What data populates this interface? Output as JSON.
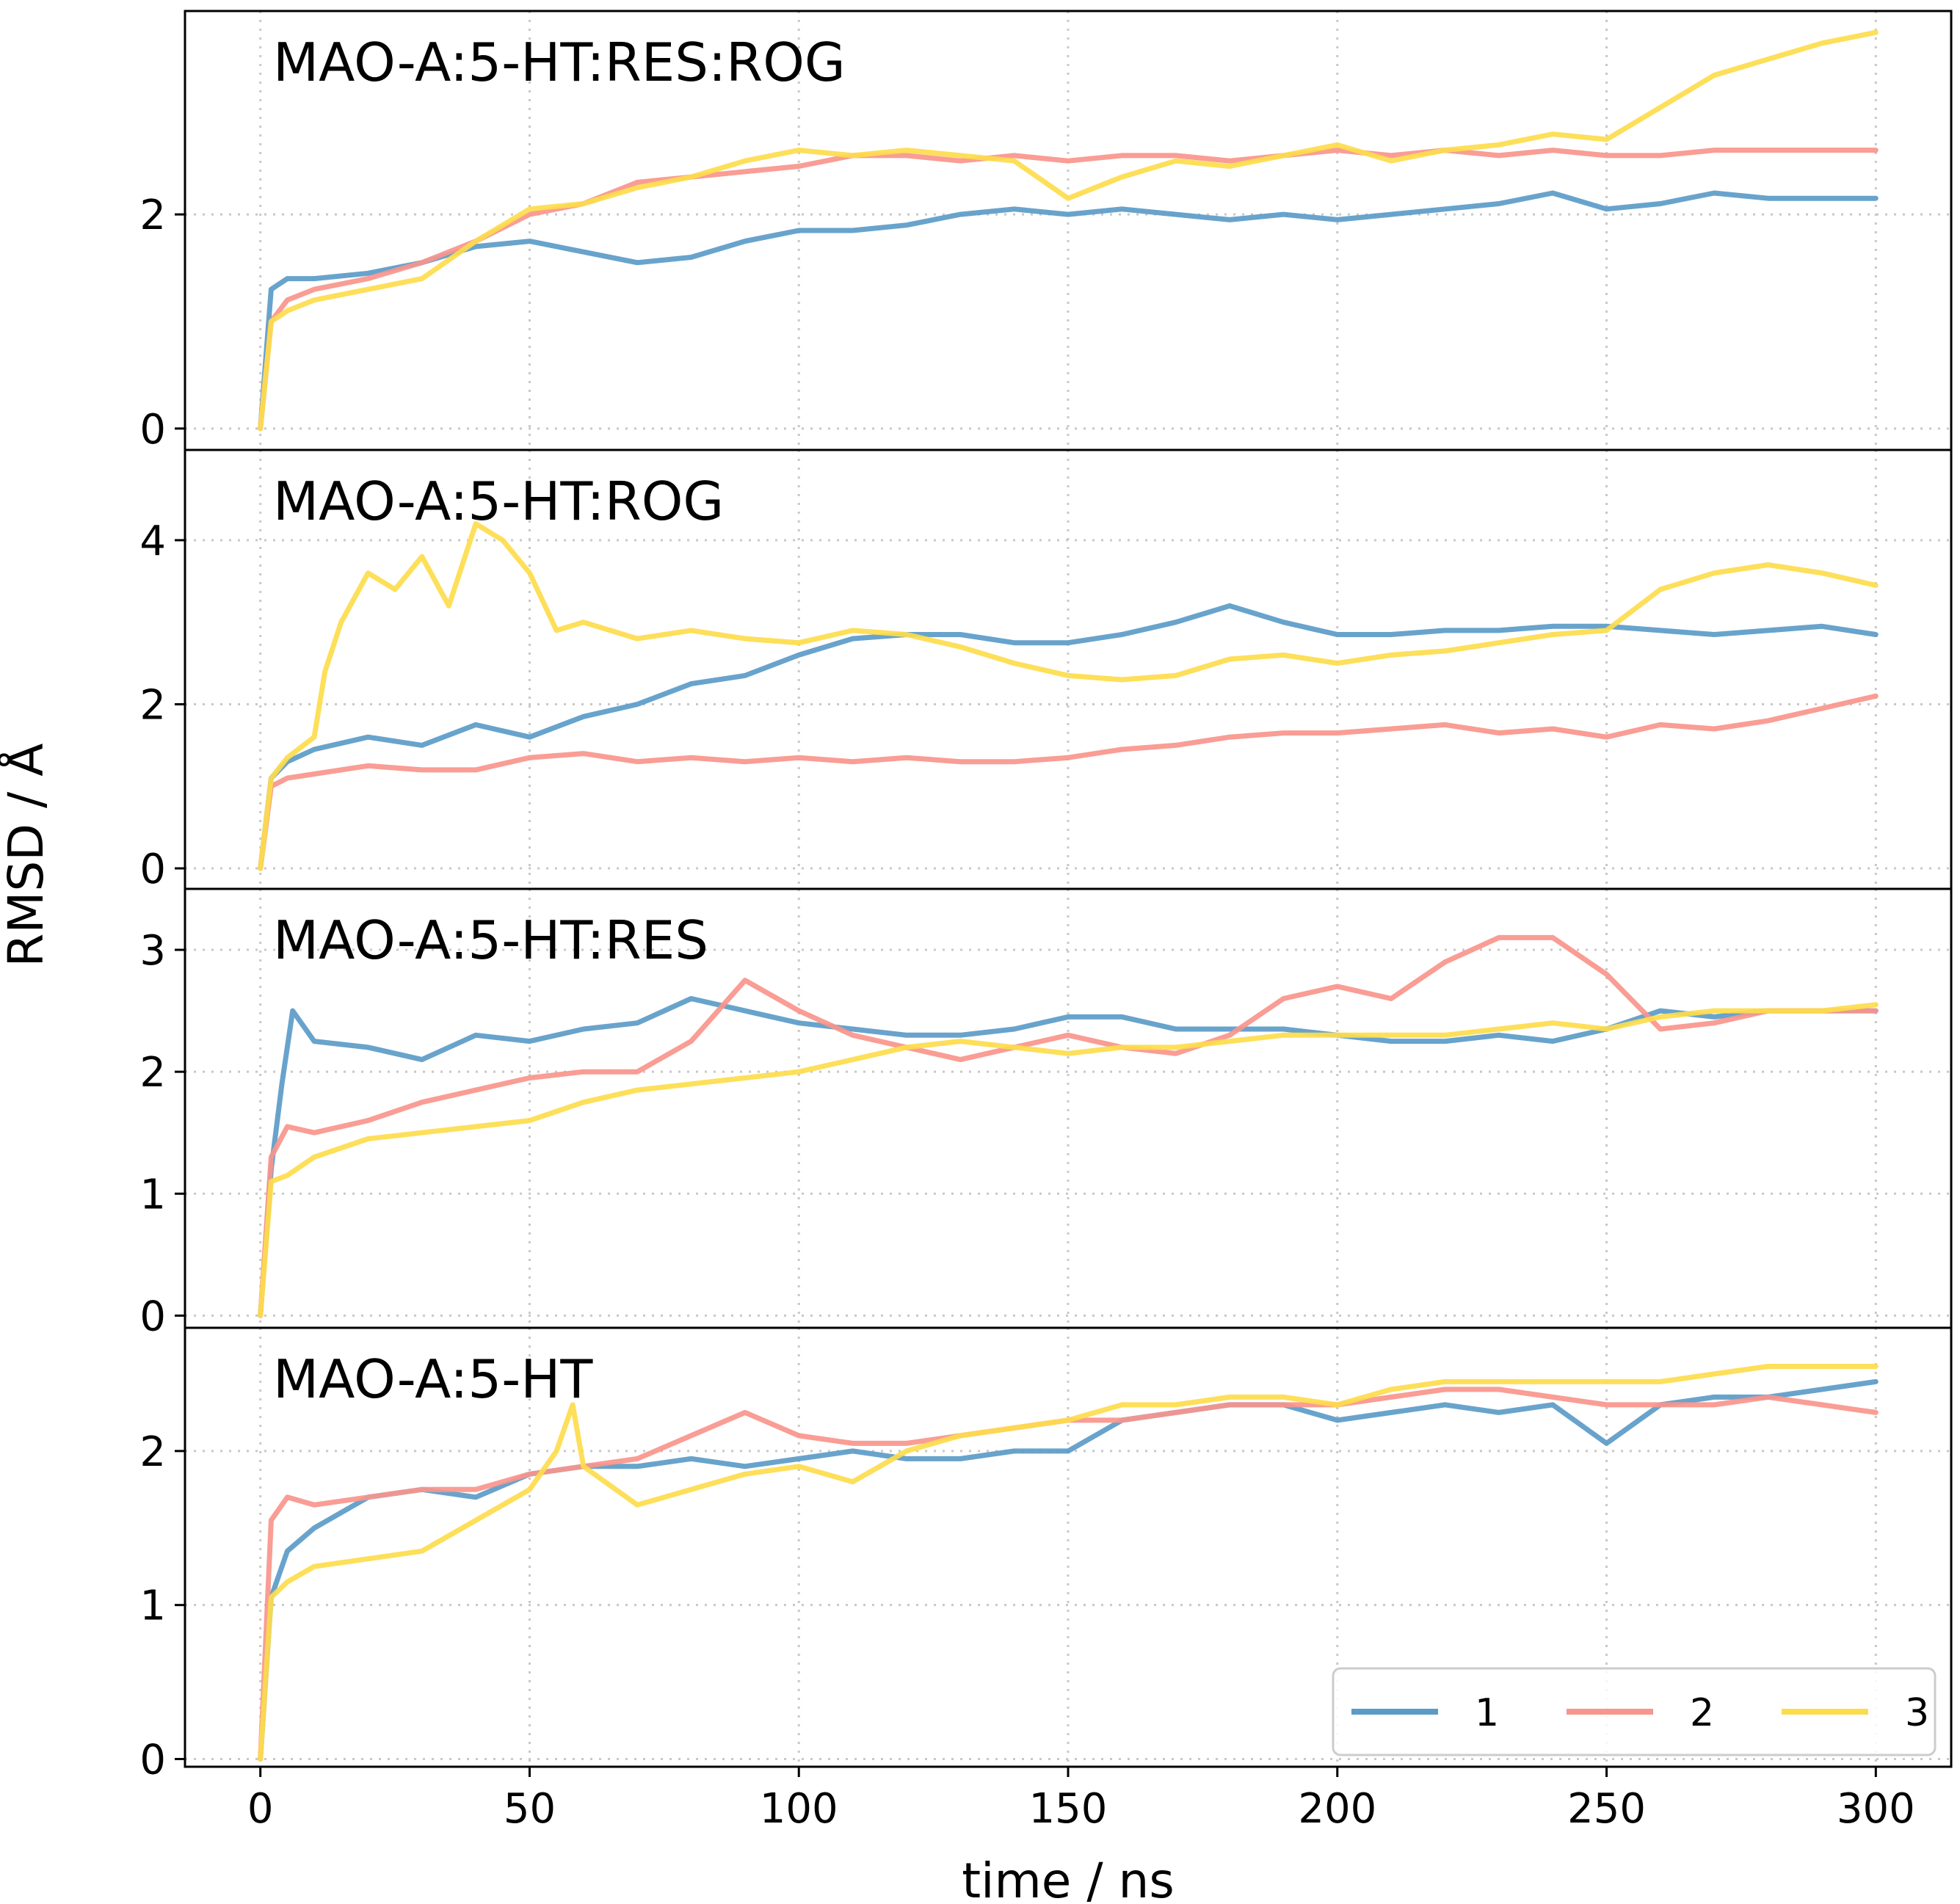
{
  "chart_data": {
    "type": "line",
    "xlabel": "time / ns",
    "ylabel": "RMSD / Å",
    "xlim": [
      -14,
      314
    ],
    "xticks": [
      0,
      50,
      100,
      150,
      200,
      250,
      300
    ],
    "xtick_labels": [
      "0",
      "50",
      "100",
      "150",
      "200",
      "250",
      "300"
    ],
    "grid": true,
    "legend": {
      "position": "bottom-right",
      "entries": [
        {
          "label": "1",
          "color": "#5b9bc8"
        },
        {
          "label": "2",
          "color": "#f8958c"
        },
        {
          "label": "3",
          "color": "#fddc4c"
        }
      ]
    },
    "panels": [
      {
        "title": "MAO-A:5-HT:RES:ROG",
        "ylim": [
          -0.2,
          3.9
        ],
        "yticks": [
          0,
          2
        ],
        "ytick_labels": [
          "0",
          "2"
        ],
        "series": [
          {
            "name": "1",
            "color": "#5b9bc8",
            "x": [
              0,
              2,
              5,
              10,
              20,
              30,
              40,
              50,
              60,
              70,
              80,
              90,
              100,
              110,
              120,
              130,
              140,
              150,
              160,
              170,
              180,
              190,
              200,
              210,
              220,
              230,
              240,
              250,
              260,
              270,
              280,
              290,
              300
            ],
            "y": [
              0,
              1.3,
              1.4,
              1.4,
              1.45,
              1.55,
              1.7,
              1.75,
              1.65,
              1.55,
              1.6,
              1.75,
              1.85,
              1.85,
              1.9,
              2.0,
              2.05,
              2.0,
              2.05,
              2.0,
              1.95,
              2.0,
              1.95,
              2.0,
              2.05,
              2.1,
              2.2,
              2.05,
              2.1,
              2.2,
              2.15,
              2.15,
              2.15
            ]
          },
          {
            "name": "2",
            "color": "#f8958c",
            "x": [
              0,
              2,
              5,
              10,
              20,
              30,
              40,
              50,
              60,
              70,
              80,
              90,
              100,
              110,
              120,
              130,
              140,
              150,
              160,
              170,
              180,
              190,
              200,
              210,
              220,
              230,
              240,
              250,
              260,
              270,
              280,
              290,
              300
            ],
            "y": [
              0,
              1.0,
              1.2,
              1.3,
              1.4,
              1.55,
              1.75,
              2.0,
              2.1,
              2.3,
              2.35,
              2.4,
              2.45,
              2.55,
              2.55,
              2.5,
              2.55,
              2.5,
              2.55,
              2.55,
              2.5,
              2.55,
              2.6,
              2.55,
              2.6,
              2.55,
              2.6,
              2.55,
              2.55,
              2.6,
              2.6,
              2.6,
              2.6
            ]
          },
          {
            "name": "3",
            "color": "#fddc4c",
            "x": [
              0,
              2,
              5,
              10,
              20,
              30,
              40,
              50,
              60,
              70,
              80,
              90,
              100,
              110,
              120,
              130,
              140,
              150,
              160,
              170,
              180,
              190,
              200,
              210,
              220,
              230,
              240,
              250,
              260,
              270,
              280,
              290,
              300
            ],
            "y": [
              0,
              1.0,
              1.1,
              1.2,
              1.3,
              1.4,
              1.75,
              2.05,
              2.1,
              2.25,
              2.35,
              2.5,
              2.6,
              2.55,
              2.6,
              2.55,
              2.5,
              2.15,
              2.35,
              2.5,
              2.45,
              2.55,
              2.65,
              2.5,
              2.6,
              2.65,
              2.75,
              2.7,
              3.0,
              3.3,
              3.45,
              3.6,
              3.7
            ]
          }
        ]
      },
      {
        "title": "MAO-A:5-HT:ROG",
        "ylim": [
          -0.25,
          5.1
        ],
        "yticks": [
          0,
          2,
          4
        ],
        "ytick_labels": [
          "0",
          "2",
          "4"
        ],
        "series": [
          {
            "name": "1",
            "color": "#5b9bc8",
            "x": [
              0,
              2,
              5,
              10,
              20,
              30,
              40,
              50,
              60,
              70,
              80,
              90,
              100,
              110,
              120,
              130,
              140,
              150,
              160,
              170,
              180,
              190,
              200,
              210,
              220,
              230,
              240,
              250,
              260,
              270,
              280,
              290,
              300
            ],
            "y": [
              0,
              1.1,
              1.3,
              1.45,
              1.6,
              1.5,
              1.75,
              1.6,
              1.85,
              2.0,
              2.25,
              2.35,
              2.6,
              2.8,
              2.85,
              2.85,
              2.75,
              2.75,
              2.85,
              3.0,
              3.2,
              3.0,
              2.85,
              2.85,
              2.9,
              2.9,
              2.95,
              2.95,
              2.9,
              2.85,
              2.9,
              2.95,
              2.85
            ]
          },
          {
            "name": "2",
            "color": "#f8958c",
            "x": [
              0,
              2,
              5,
              10,
              20,
              30,
              40,
              50,
              60,
              70,
              80,
              90,
              100,
              110,
              120,
              130,
              140,
              150,
              160,
              170,
              180,
              190,
              200,
              210,
              220,
              230,
              240,
              250,
              260,
              270,
              280,
              290,
              300
            ],
            "y": [
              0,
              1.0,
              1.1,
              1.15,
              1.25,
              1.2,
              1.2,
              1.35,
              1.4,
              1.3,
              1.35,
              1.3,
              1.35,
              1.3,
              1.35,
              1.3,
              1.3,
              1.35,
              1.45,
              1.5,
              1.6,
              1.65,
              1.65,
              1.7,
              1.75,
              1.65,
              1.7,
              1.6,
              1.75,
              1.7,
              1.8,
              1.95,
              2.1
            ]
          },
          {
            "name": "3",
            "color": "#fddc4c",
            "x": [
              0,
              2,
              5,
              10,
              12,
              15,
              20,
              25,
              30,
              35,
              40,
              45,
              50,
              55,
              60,
              70,
              80,
              90,
              100,
              110,
              120,
              130,
              140,
              150,
              160,
              170,
              180,
              190,
              200,
              210,
              220,
              230,
              240,
              250,
              260,
              270,
              280,
              290,
              300
            ],
            "y": [
              0,
              1.1,
              1.35,
              1.6,
              2.4,
              3.0,
              3.6,
              3.4,
              3.8,
              3.2,
              4.2,
              4.0,
              3.6,
              2.9,
              3.0,
              2.8,
              2.9,
              2.8,
              2.75,
              2.9,
              2.85,
              2.7,
              2.5,
              2.35,
              2.3,
              2.35,
              2.55,
              2.6,
              2.5,
              2.6,
              2.65,
              2.75,
              2.85,
              2.9,
              3.4,
              3.6,
              3.7,
              3.6,
              3.45
            ]
          }
        ]
      },
      {
        "title": "MAO-A:5-HT:RES",
        "ylim": [
          -0.1,
          3.5
        ],
        "yticks": [
          0,
          1,
          2,
          3
        ],
        "ytick_labels": [
          "0",
          "1",
          "2",
          "3"
        ],
        "series": [
          {
            "name": "1",
            "color": "#5b9bc8",
            "x": [
              0,
              2,
              4,
              6,
              10,
              20,
              30,
              40,
              50,
              60,
              70,
              80,
              90,
              100,
              110,
              120,
              130,
              140,
              150,
              160,
              170,
              180,
              190,
              200,
              210,
              220,
              230,
              240,
              250,
              260,
              270,
              280,
              290,
              300
            ],
            "y": [
              0,
              1.2,
              1.9,
              2.5,
              2.25,
              2.2,
              2.1,
              2.3,
              2.25,
              2.35,
              2.4,
              2.6,
              2.5,
              2.4,
              2.35,
              2.3,
              2.3,
              2.35,
              2.45,
              2.45,
              2.35,
              2.35,
              2.35,
              2.3,
              2.25,
              2.25,
              2.3,
              2.25,
              2.35,
              2.5,
              2.45,
              2.5,
              2.5,
              2.5
            ]
          },
          {
            "name": "2",
            "color": "#f8958c",
            "x": [
              0,
              2,
              5,
              10,
              20,
              30,
              40,
              50,
              60,
              70,
              80,
              90,
              100,
              110,
              120,
              130,
              140,
              150,
              160,
              170,
              180,
              190,
              200,
              210,
              220,
              230,
              240,
              250,
              260,
              270,
              280,
              290,
              300
            ],
            "y": [
              0,
              1.3,
              1.55,
              1.5,
              1.6,
              1.75,
              1.85,
              1.95,
              2.0,
              2.0,
              2.25,
              2.75,
              2.5,
              2.3,
              2.2,
              2.1,
              2.2,
              2.3,
              2.2,
              2.15,
              2.3,
              2.6,
              2.7,
              2.6,
              2.9,
              3.1,
              3.1,
              2.8,
              2.35,
              2.4,
              2.5,
              2.5,
              2.5
            ]
          },
          {
            "name": "3",
            "color": "#fddc4c",
            "x": [
              0,
              2,
              5,
              10,
              20,
              30,
              40,
              50,
              60,
              70,
              80,
              90,
              100,
              110,
              120,
              130,
              140,
              150,
              160,
              170,
              180,
              190,
              200,
              210,
              220,
              230,
              240,
              250,
              260,
              270,
              280,
              290,
              300
            ],
            "y": [
              0,
              1.1,
              1.15,
              1.3,
              1.45,
              1.5,
              1.55,
              1.6,
              1.75,
              1.85,
              1.9,
              1.95,
              2.0,
              2.1,
              2.2,
              2.25,
              2.2,
              2.15,
              2.2,
              2.2,
              2.25,
              2.3,
              2.3,
              2.3,
              2.3,
              2.35,
              2.4,
              2.35,
              2.45,
              2.5,
              2.5,
              2.5,
              2.55
            ]
          }
        ]
      },
      {
        "title": "MAO-A:5-HT",
        "ylim": [
          -0.05,
          2.8
        ],
        "yticks": [
          0,
          1,
          2
        ],
        "ytick_labels": [
          "0",
          "1",
          "2"
        ],
        "series": [
          {
            "name": "1",
            "color": "#5b9bc8",
            "x": [
              0,
              2,
              5,
              10,
              20,
              30,
              40,
              50,
              60,
              70,
              80,
              90,
              100,
              110,
              120,
              130,
              140,
              150,
              160,
              170,
              180,
              190,
              200,
              210,
              220,
              230,
              240,
              250,
              260,
              270,
              280,
              290,
              300
            ],
            "y": [
              0,
              1.05,
              1.35,
              1.5,
              1.7,
              1.75,
              1.7,
              1.85,
              1.9,
              1.9,
              1.95,
              1.9,
              1.95,
              2.0,
              1.95,
              1.95,
              2.0,
              2.0,
              2.2,
              2.25,
              2.3,
              2.3,
              2.2,
              2.25,
              2.3,
              2.25,
              2.3,
              2.05,
              2.3,
              2.35,
              2.35,
              2.4,
              2.45
            ]
          },
          {
            "name": "2",
            "color": "#f8958c",
            "x": [
              0,
              2,
              5,
              10,
              20,
              30,
              40,
              50,
              60,
              70,
              80,
              90,
              100,
              110,
              120,
              130,
              140,
              150,
              160,
              170,
              180,
              190,
              200,
              210,
              220,
              230,
              240,
              250,
              260,
              270,
              280,
              290,
              300
            ],
            "y": [
              0,
              1.55,
              1.7,
              1.65,
              1.7,
              1.75,
              1.75,
              1.85,
              1.9,
              1.95,
              2.1,
              2.25,
              2.1,
              2.05,
              2.05,
              2.1,
              2.15,
              2.2,
              2.2,
              2.25,
              2.3,
              2.3,
              2.3,
              2.35,
              2.4,
              2.4,
              2.35,
              2.3,
              2.3,
              2.3,
              2.35,
              2.3,
              2.25
            ]
          },
          {
            "name": "3",
            "color": "#fddc4c",
            "x": [
              0,
              2,
              5,
              10,
              20,
              30,
              40,
              50,
              55,
              58,
              60,
              70,
              80,
              90,
              100,
              110,
              120,
              130,
              140,
              150,
              160,
              170,
              180,
              190,
              200,
              210,
              220,
              230,
              240,
              250,
              260,
              270,
              280,
              290,
              300
            ],
            "y": [
              0,
              1.05,
              1.15,
              1.25,
              1.3,
              1.35,
              1.55,
              1.75,
              2.0,
              2.3,
              1.9,
              1.65,
              1.75,
              1.85,
              1.9,
              1.8,
              2.0,
              2.1,
              2.15,
              2.2,
              2.3,
              2.3,
              2.35,
              2.35,
              2.3,
              2.4,
              2.45,
              2.45,
              2.45,
              2.45,
              2.45,
              2.5,
              2.55,
              2.55,
              2.55
            ]
          }
        ]
      }
    ]
  }
}
